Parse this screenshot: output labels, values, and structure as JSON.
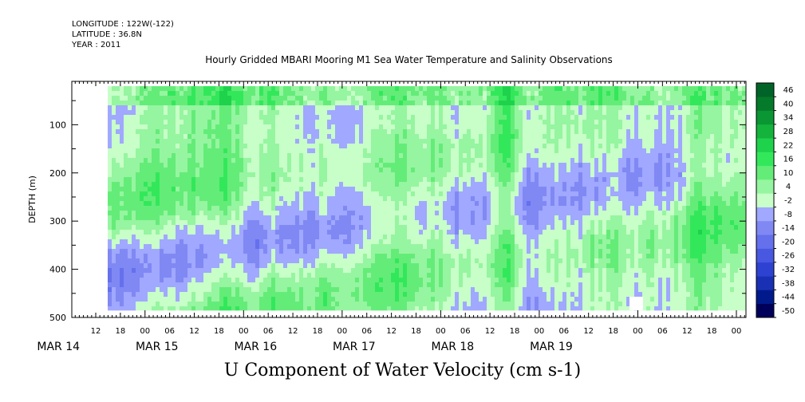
{
  "header": {
    "longitude": "LONGITUDE : 122W(-122)",
    "latitude": "LATITUDE : 36.8N",
    "year": "YEAR : 2011",
    "title": "Hourly Gridded MBARI Mooring M1 Sea Water Temperature and Salinity Observations"
  },
  "chart_data": {
    "type": "heatmap",
    "title": "U Component of Water Velocity (cm s-1)",
    "ylabel": "DEPTH (m)",
    "xlabel": "",
    "ylim": [
      500,
      10
    ],
    "y_tick_labels": [
      "100",
      "200",
      "300",
      "400",
      "500"
    ],
    "x_tick_labels": [
      "12",
      "18",
      "00",
      "06",
      "12",
      "18",
      "00",
      "06",
      "12",
      "18",
      "00",
      "06",
      "12",
      "18",
      "00",
      "06",
      "12",
      "18",
      "00",
      "06",
      "12",
      "18",
      "00",
      "06",
      "12",
      "18",
      "00"
    ],
    "x_day_labels": [
      "MAR 14",
      "MAR 15",
      "MAR 16",
      "MAR 17",
      "MAR 18",
      "MAR 19"
    ],
    "data_depth_range": [
      20,
      485
    ],
    "colorbar_labels": [
      "46",
      "40",
      "34",
      "28",
      "22",
      "16",
      "10",
      "4",
      "-2",
      "-8",
      "-14",
      "-20",
      "-26",
      "-32",
      "-38",
      "-44",
      "-50"
    ],
    "colorbar_range": [
      -50,
      52
    ],
    "colors": {
      "strong_negative": "#000060",
      "negative": "#3c44d4",
      "weak_negative": "#a0a8ff",
      "near_zero": "#c8ffc8",
      "positive": "#32e85a",
      "strong_positive": "#006428"
    },
    "description_pattern": "vertical banded structure alternating between weak negative (light blue) and positive (green) U velocity across the water column"
  }
}
